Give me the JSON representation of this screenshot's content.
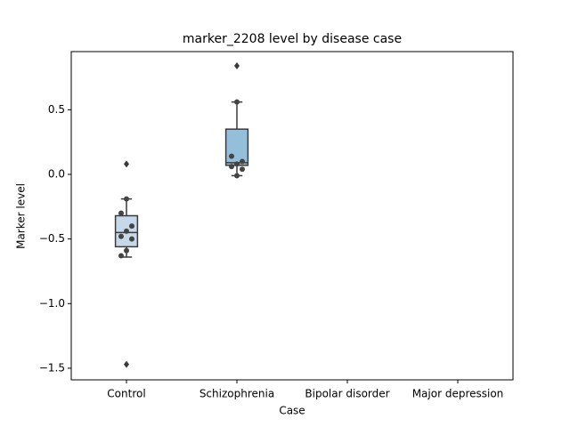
{
  "chart_data": {
    "type": "box",
    "title": "marker_2208 level by disease case",
    "x_label": "Case",
    "y_label": "Marker level",
    "categories": [
      "Control",
      "Schizophrenia",
      "Bipolar disorder",
      "Major depression"
    ],
    "boxes": [
      {
        "color": "#c6d9ea",
        "whislo": -0.64,
        "q1": -0.56,
        "med": -0.45,
        "q3": -0.32,
        "whishi": -0.19,
        "fliers": [
          0.08,
          -1.47
        ],
        "points": [
          -0.19,
          -0.3,
          -0.4,
          -0.44,
          -0.48,
          -0.5,
          -0.59,
          -0.63
        ]
      },
      {
        "color": "#93bfdb",
        "whislo": -0.01,
        "q1": 0.07,
        "med": 0.09,
        "q3": 0.35,
        "whishi": 0.56,
        "fliers": [
          0.84
        ],
        "points": [
          0.56,
          0.14,
          0.1,
          0.08,
          0.06,
          0.04,
          -0.01
        ]
      },
      null,
      null
    ],
    "ylim": [
      -1.59,
      0.95
    ],
    "yticks": [
      {
        "value": -1.5,
        "label": "−1.5"
      },
      {
        "value": -1.0,
        "label": "−1.0"
      },
      {
        "value": -0.5,
        "label": "−0.5"
      },
      {
        "value": 0.0,
        "label": "0.0"
      },
      0.5
    ]
  }
}
